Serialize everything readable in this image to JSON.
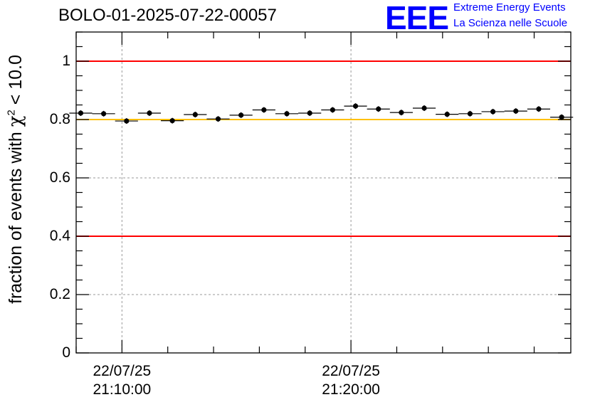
{
  "header": {
    "title": "BOLO-01-2025-07-22-00057"
  },
  "logo": {
    "mark": "EEE",
    "line1": "Extreme Energy Events",
    "line2": "La Scienza nelle Scuole",
    "color": "#0000ff"
  },
  "chart_data": {
    "type": "scatter",
    "title": "BOLO-01-2025-07-22-00057",
    "ylabel_prefix": "fraction of events with ",
    "ylabel_symbol": "χ",
    "ylabel_sup": "2",
    "ylabel_suffix": " < 10.0",
    "xlabel": "",
    "ylim": [
      0,
      1.1
    ],
    "yticks": [
      "0",
      "0.2",
      "0.4",
      "0.6",
      "0.8",
      "1"
    ],
    "ytick_values": [
      0,
      0.2,
      0.4,
      0.6,
      0.8,
      1.0
    ],
    "xticks": [
      {
        "date": "22/07/25",
        "time": "21:10:00",
        "minutes": 10
      },
      {
        "date": "22/07/25",
        "time": "21:20:00",
        "minutes": 20
      }
    ],
    "x_unit": "minutes after 21:00:00 on 22/07/25",
    "xlim": [
      8,
      29.6
    ],
    "bin_width_minutes": 1,
    "grid": true,
    "reference_lines": [
      {
        "y": 1.0,
        "color": "#ff0000"
      },
      {
        "y": 0.8,
        "color": "#ffc000"
      },
      {
        "y": 0.4,
        "color": "#ff0000"
      }
    ],
    "x": [
      8.2,
      9.2,
      10.2,
      11.2,
      12.2,
      13.2,
      14.2,
      15.2,
      16.2,
      17.2,
      18.2,
      19.2,
      20.2,
      21.2,
      22.2,
      23.2,
      24.2,
      25.2,
      26.2,
      27.2,
      28.2,
      29.2
    ],
    "y": [
      0.822,
      0.82,
      0.795,
      0.822,
      0.796,
      0.817,
      0.802,
      0.815,
      0.833,
      0.82,
      0.822,
      0.833,
      0.846,
      0.836,
      0.824,
      0.839,
      0.818,
      0.82,
      0.827,
      0.829,
      0.836,
      0.808
    ],
    "marker_color": "#000000"
  }
}
